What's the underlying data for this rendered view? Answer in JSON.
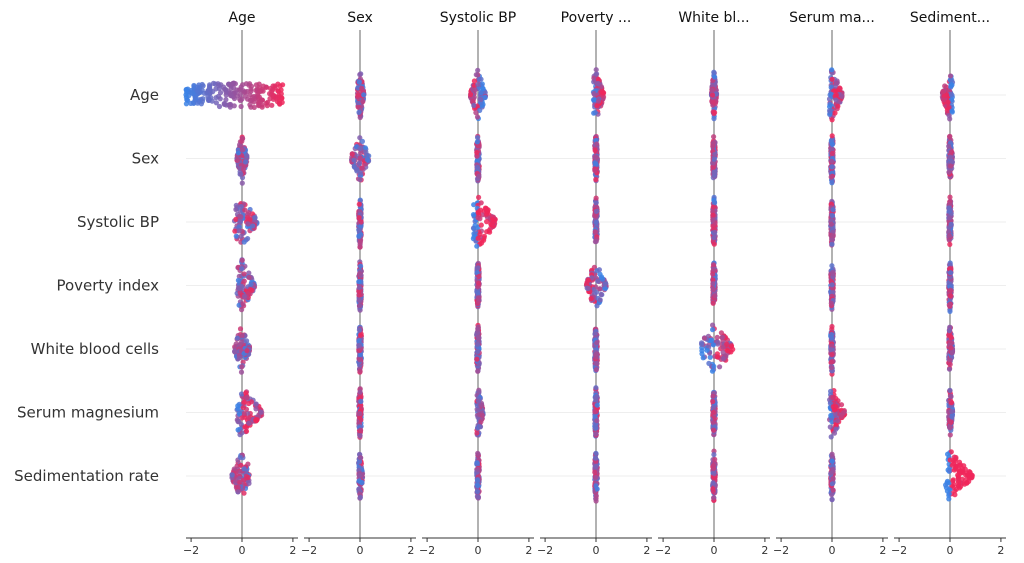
{
  "chart_data": {
    "type": "scatter",
    "subtype": "shap-interaction-beeswarm-matrix",
    "columns": [
      "Age",
      "Sex",
      "Systolic BP",
      "Poverty ...",
      "White bl...",
      "Serum ma...",
      "Sediment..."
    ],
    "rows": [
      "Age",
      "Sex",
      "Systolic BP",
      "Poverty index",
      "White blood cells",
      "Serum magnesium",
      "Sedimentation rate"
    ],
    "xlim": [
      -2.2,
      2.2
    ],
    "xticks": [
      -2,
      0,
      2
    ],
    "xtick_labels": [
      "−2",
      "0",
      "2"
    ],
    "colors": {
      "low": "#3b82e6",
      "high": "#f0275a",
      "zero_line": "#999999",
      "row_line": "#eeeeee"
    },
    "cells": [
      [
        {
          "min": -2.2,
          "max": 1.6,
          "skew": 0.0
        },
        {
          "min": -0.1,
          "max": 0.15,
          "skew": 0.0
        },
        {
          "min": -0.3,
          "max": 0.3,
          "skew": -0.1
        },
        {
          "min": -0.1,
          "max": 0.3,
          "skew": 0.1
        },
        {
          "min": -0.1,
          "max": 0.1,
          "skew": 0.0
        },
        {
          "min": -0.1,
          "max": 0.4,
          "skew": 0.1
        },
        {
          "min": -0.3,
          "max": 0.1,
          "skew": -0.1
        }
      ],
      [
        {
          "min": -0.2,
          "max": 0.2,
          "skew": 0.0
        },
        {
          "min": -0.35,
          "max": 0.35,
          "skew": 0.0
        },
        {
          "min": -0.05,
          "max": 0.05,
          "skew": 0.0
        },
        {
          "min": -0.05,
          "max": 0.05,
          "skew": 0.0
        },
        {
          "min": -0.05,
          "max": 0.05,
          "skew": 0.0
        },
        {
          "min": -0.05,
          "max": 0.05,
          "skew": 0.0
        },
        {
          "min": -0.05,
          "max": 0.1,
          "skew": 0.0
        }
      ],
      [
        {
          "min": -0.3,
          "max": 0.6,
          "skew": 0.0
        },
        {
          "min": -0.05,
          "max": 0.05,
          "skew": 0.0
        },
        {
          "min": -0.2,
          "max": 0.7,
          "skew": 0.2
        },
        {
          "min": -0.05,
          "max": 0.05,
          "skew": 0.0
        },
        {
          "min": -0.05,
          "max": 0.05,
          "skew": 0.0
        },
        {
          "min": -0.05,
          "max": 0.05,
          "skew": 0.0
        },
        {
          "min": -0.05,
          "max": 0.05,
          "skew": 0.0
        }
      ],
      [
        {
          "min": -0.2,
          "max": 0.5,
          "skew": 0.0
        },
        {
          "min": -0.05,
          "max": 0.05,
          "skew": 0.0
        },
        {
          "min": -0.05,
          "max": 0.05,
          "skew": 0.0
        },
        {
          "min": -0.4,
          "max": 0.4,
          "skew": -0.1
        },
        {
          "min": -0.05,
          "max": 0.05,
          "skew": 0.0
        },
        {
          "min": -0.05,
          "max": 0.05,
          "skew": 0.0
        },
        {
          "min": -0.05,
          "max": 0.05,
          "skew": 0.0
        }
      ],
      [
        {
          "min": -0.3,
          "max": 0.3,
          "skew": 0.0
        },
        {
          "min": -0.05,
          "max": 0.05,
          "skew": 0.0
        },
        {
          "min": -0.05,
          "max": 0.05,
          "skew": 0.0
        },
        {
          "min": -0.05,
          "max": 0.05,
          "skew": 0.0
        },
        {
          "min": -0.5,
          "max": 0.75,
          "skew": 0.1
        },
        {
          "min": -0.05,
          "max": 0.05,
          "skew": 0.0
        },
        {
          "min": -0.05,
          "max": 0.1,
          "skew": 0.0
        }
      ],
      [
        {
          "min": -0.2,
          "max": 0.8,
          "skew": 0.1
        },
        {
          "min": -0.05,
          "max": 0.05,
          "skew": 0.0
        },
        {
          "min": -0.05,
          "max": 0.2,
          "skew": 0.0
        },
        {
          "min": -0.05,
          "max": 0.05,
          "skew": 0.0
        },
        {
          "min": -0.05,
          "max": 0.05,
          "skew": 0.0
        },
        {
          "min": -0.1,
          "max": 0.5,
          "skew": 0.1
        },
        {
          "min": -0.05,
          "max": 0.1,
          "skew": 0.0
        }
      ],
      [
        {
          "min": -0.4,
          "max": 0.3,
          "skew": 0.0
        },
        {
          "min": -0.05,
          "max": 0.1,
          "skew": 0.0
        },
        {
          "min": -0.05,
          "max": 0.05,
          "skew": 0.0
        },
        {
          "min": -0.05,
          "max": 0.05,
          "skew": 0.0
        },
        {
          "min": -0.05,
          "max": 0.05,
          "skew": 0.0
        },
        {
          "min": -0.05,
          "max": 0.05,
          "skew": 0.0
        },
        {
          "min": -0.2,
          "max": 0.9,
          "skew": 0.3
        }
      ]
    ]
  }
}
